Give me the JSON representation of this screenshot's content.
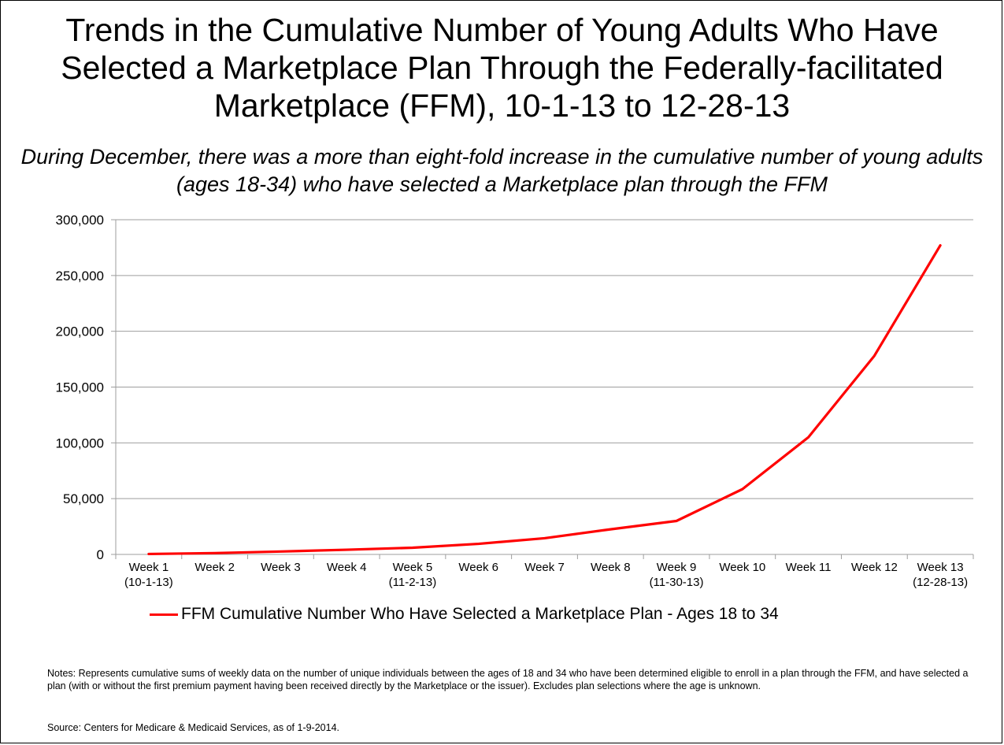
{
  "colors": {
    "series": "#ff0000",
    "grid": "#9e9e9e",
    "axis": "#9e9e9e"
  },
  "chart_data": {
    "type": "line",
    "title": "Trends in the Cumulative Number of Young Adults Who Have Selected a Marketplace Plan Through the Federally-facilitated Marketplace (FFM), 10-1-13 to 12-28-13",
    "subtitle": "During December, there was a more than eight-fold increase in the cumulative number of young adults (ages 18-34) who have selected a Marketplace plan through the FFM",
    "categories": [
      [
        "Week 1",
        "(10-1-13)"
      ],
      [
        "Week 2",
        ""
      ],
      [
        "Week 3",
        ""
      ],
      [
        "Week 4",
        ""
      ],
      [
        "Week 5",
        "(11-2-13)"
      ],
      [
        "Week 6",
        ""
      ],
      [
        "Week 7",
        ""
      ],
      [
        "Week 8",
        ""
      ],
      [
        "Week 9",
        "(11-30-13)"
      ],
      [
        "Week 10",
        ""
      ],
      [
        "Week 11",
        ""
      ],
      [
        "Week 12",
        ""
      ],
      [
        "Week 13",
        "(12-28-13)"
      ]
    ],
    "series": [
      {
        "name": "FFM Cumulative Number Who Have Selected a Marketplace Plan - Ages 18 to 34",
        "values": [
          400,
          1200,
          2600,
          4200,
          6000,
          9500,
          14500,
          22500,
          30000,
          58500,
          105000,
          178000,
          277000
        ]
      }
    ],
    "ylim": [
      0,
      300000
    ],
    "yticks": [
      0,
      50000,
      100000,
      150000,
      200000,
      250000,
      300000
    ],
    "ytick_labels": [
      "0",
      "50,000",
      "100,000",
      "150,000",
      "200,000",
      "250,000",
      "300,000"
    ],
    "grid": true,
    "legend_position": "bottom",
    "xlabel": "",
    "ylabel": ""
  },
  "notes": "Notes:  Represents cumulative sums of weekly data on the number of unique individuals between the ages of 18 and 34 who have been determined eligible to enroll in a plan through the FFM, and have selected a plan (with or without the first premium payment having been received directly by the Marketplace or the issuer).  Excludes plan selections where the age is unknown.",
  "source": "Source:  Centers for Medicare & Medicaid Services, as of 1-9-2014."
}
